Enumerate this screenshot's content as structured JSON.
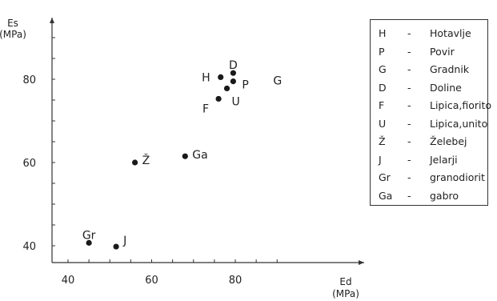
{
  "chart_data": {
    "type": "scatter",
    "xlabel": "Ed\n(MPa)",
    "ylabel": "Es\n(MPa)",
    "xlim": [
      35,
      95
    ],
    "ylim": [
      35,
      95
    ],
    "xticks": [
      40,
      60,
      80
    ],
    "yticks": [
      40,
      60,
      80
    ],
    "points": [
      {
        "label": "H",
        "x": 76.5,
        "y": 80.5
      },
      {
        "label": "D",
        "x": 79.5,
        "y": 81.5
      },
      {
        "label": "P",
        "x": 79.5,
        "y": 79.5
      },
      {
        "label": "G",
        "x": null,
        "y": null
      },
      {
        "label": "U",
        "x": 78,
        "y": 77.8
      },
      {
        "label": "F",
        "x": 76,
        "y": 75.3
      },
      {
        "label": "Ž",
        "x": 56,
        "y": 60
      },
      {
        "label": "Ga",
        "x": 68,
        "y": 61.5
      },
      {
        "label": "Gr",
        "x": 45,
        "y": 40.7
      },
      {
        "label": "J",
        "x": 51.5,
        "y": 39.8
      }
    ],
    "legend": {
      "position": "right",
      "entries": [
        {
          "code": "H",
          "name": "Hotavlje"
        },
        {
          "code": "P",
          "name": "Povir"
        },
        {
          "code": "G",
          "name": "Gradnik"
        },
        {
          "code": "D",
          "name": "Doline"
        },
        {
          "code": "F",
          "name": "Lipica,fiorito"
        },
        {
          "code": "U",
          "name": "Lipica,unito"
        },
        {
          "code": "Ž",
          "name": "Želebej"
        },
        {
          "code": "J",
          "name": "Jelarji"
        },
        {
          "code": "Gr",
          "name": "granodiorit"
        },
        {
          "code": "Ga",
          "name": "gabro"
        }
      ],
      "separator": "-"
    }
  }
}
